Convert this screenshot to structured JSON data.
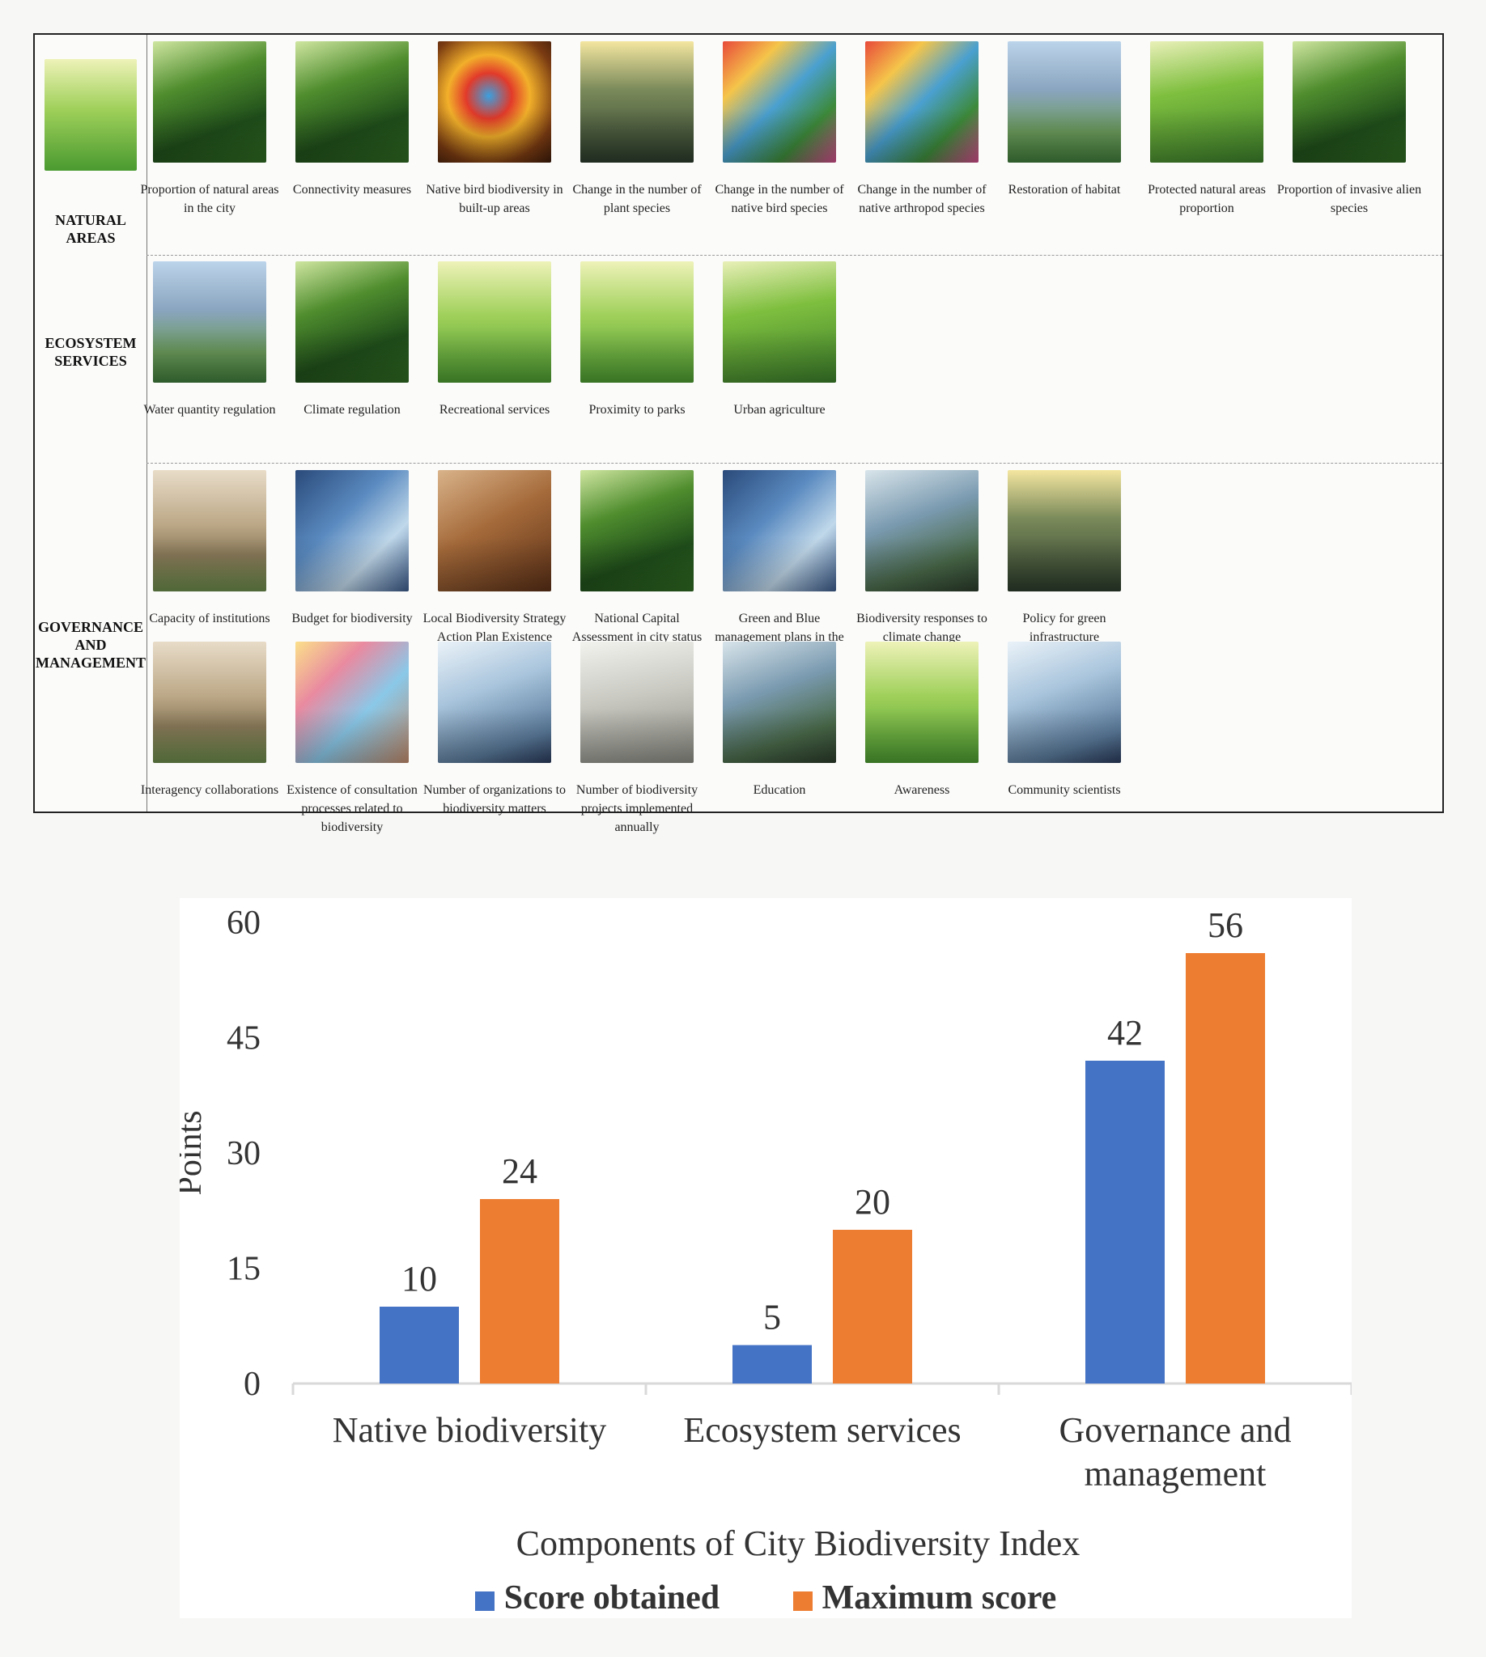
{
  "table": {
    "categories": {
      "natural": [
        "NATURAL",
        "AREAS"
      ],
      "ecosystem": [
        "ECOSYSTEM",
        "SERVICES"
      ],
      "governance": [
        "GOVERNANCE",
        "AND",
        "MANAGEMENT"
      ]
    },
    "natural_areas": [
      {
        "caption": "Proportion of natural areas in the city",
        "icon": "forest-image-icon"
      },
      {
        "caption": "Connectivity measures",
        "icon": "canyon-forest-image-icon"
      },
      {
        "caption": "Native bird biodiversity in built-up areas",
        "icon": "bird-image-icon"
      },
      {
        "caption": "Change in the number of plant species",
        "icon": "tree-image-icon"
      },
      {
        "caption": "Change in the number of native bird species",
        "icon": "birds-flock-image-icon"
      },
      {
        "caption": "Change in the number of native arthropod species",
        "icon": "insects-image-icon"
      },
      {
        "caption": "Restoration of habitat",
        "icon": "people-planting-image-icon"
      },
      {
        "caption": "Protected natural areas proportion",
        "icon": "protected-area-image-icon"
      },
      {
        "caption": "Proportion of invasive alien species",
        "icon": "invasive-plants-image-icon"
      }
    ],
    "ecosystem_services": [
      {
        "caption": "Water quantity regulation",
        "icon": "urban-canal-image-icon"
      },
      {
        "caption": "Climate regulation",
        "icon": "sunlit-forest-image-icon"
      },
      {
        "caption": "Recreational services",
        "icon": "park-stream-image-icon"
      },
      {
        "caption": "Proximity to parks",
        "icon": "city-park-image-icon"
      },
      {
        "caption": "Urban agriculture",
        "icon": "farmland-image-icon"
      }
    ],
    "governance_row1": [
      {
        "caption": "Capacity of institutions",
        "icon": "capitol-building-image-icon"
      },
      {
        "caption": "Budget for biodiversity",
        "icon": "laptop-charts-image-icon"
      },
      {
        "caption": "Local Biodiversity Strategy Action Plan Existence",
        "icon": "document-ribbon-image-icon"
      },
      {
        "caption": "National Capital Assessment in city status",
        "icon": "city-jungle-image-icon"
      },
      {
        "caption": "Green and Blue management plans in the city",
        "icon": "aerial-city-image-icon"
      },
      {
        "caption": "Biodiversity responses to climate change",
        "icon": "meeting-circle-image-icon"
      },
      {
        "caption": "Policy for green infrastructure",
        "icon": "green-street-image-icon"
      }
    ],
    "governance_row2": [
      {
        "caption": "Interagency collaborations",
        "icon": "city-buildings-image-icon"
      },
      {
        "caption": "Existence of consultation processes related to biodiversity",
        "icon": "workshop-notes-image-icon"
      },
      {
        "caption": "Number of organizations to biodiversity matters",
        "icon": "network-crowd-image-icon"
      },
      {
        "caption": "Number of biodiversity projects implemented annually",
        "icon": "office-meeting-image-icon"
      },
      {
        "caption": "Education",
        "icon": "group-table-image-icon"
      },
      {
        "caption": "Awareness",
        "icon": "tree-butterflies-image-icon"
      },
      {
        "caption": "Community scientists",
        "icon": "scientists-group-image-icon"
      }
    ]
  },
  "chart_data": {
    "type": "bar",
    "categories": [
      "Native biodiversity",
      "Ecosystem services",
      "Governance and management"
    ],
    "category_label_lines": [
      [
        "Native biodiversity"
      ],
      [
        "Ecosystem services"
      ],
      [
        "Governance and",
        "management"
      ]
    ],
    "series": [
      {
        "name": "Score obtained",
        "values": [
          10,
          5,
          42
        ],
        "color": "#4472c4"
      },
      {
        "name": "Maximum score",
        "values": [
          24,
          20,
          56
        ],
        "color": "#ed7d31"
      }
    ],
    "title": "",
    "xlabel": "Components of City Biodiversity Index",
    "ylabel": "Points",
    "ylim": [
      0,
      60
    ],
    "yticks": [
      "0",
      "15",
      "30",
      "45",
      "60"
    ],
    "legend_position": "bottom"
  }
}
